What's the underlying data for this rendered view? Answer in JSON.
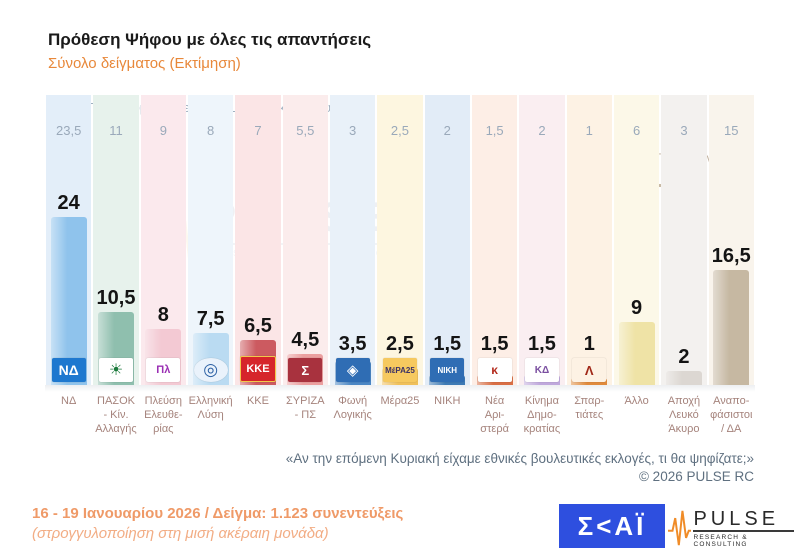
{
  "header": {
    "title": "Πρόθεση Ψήφου με όλες τις απαντήσεις",
    "subtitle": "Σύνολο δείγματος   (Εκτίμηση)"
  },
  "previous_survey_header": "Προηγούμενη έρευνα ( 11 - 14 Δεκεμβρίου 2025 )",
  "grey_zone": {
    "label": "Γκρίζα ζώνη",
    "value": "18,5"
  },
  "watermark": {
    "word": "PULSE",
    "sub": "RESEARCH & CONSULTING"
  },
  "question": "«Αν την επόμενη Κυριακή είχαμε εθνικές βουλευτικές εκλογές, τι θα ψηφίζατε;»",
  "copyright": "©  2026  PULSE RC",
  "footer": {
    "line1": "16 - 19 Ιανουαρίου 2026  /  Δείγμα:  1.123 συνεντεύξεις",
    "line2": "(στρογγυλοποίηση στη μισή ακέραιη μονάδα)"
  },
  "logos": {
    "skai_text": "Σ<ΑΪ",
    "pulse_word": "PULSE",
    "pulse_sub": "RESEARCH & CONSULTING"
  },
  "colors": {
    "accent_orange": "#e8883a",
    "skai_blue": "#2e4fdf",
    "pulse_orange": "#f08c28",
    "grey_zone_tan": "#c3b3a0"
  },
  "chart_data": {
    "type": "bar",
    "title": "Πρόθεση Ψήφου με όλες τις απαντήσεις",
    "subtitle": "Σύνολο δείγματος (Εκτίμηση)",
    "ylim": [
      0,
      26
    ],
    "grid": false,
    "legend": "none",
    "categories": [
      "ΝΔ",
      "ΠΑΣΟΚ - Κίν. Αλλαγής",
      "Πλεύση Ελευθερίας",
      "Ελληνική Λύση",
      "ΚΚΕ",
      "ΣΥΡΙΖΑ - ΠΣ",
      "Φωνή Λογικής",
      "Μέρα25",
      "ΝΙΚΗ",
      "Νέα Αριστερά",
      "Κίνημα Δημοκρατίας",
      "Σπαρτιάτες",
      "Άλλο",
      "Αποχή Λευκό Άκυρο",
      "Αναποφάσιστοι / ΔΑ"
    ],
    "categories_multiline": [
      "ΝΔ",
      "ΠΑΣΟΚ\n- Κίν.\nΑλλαγής",
      "Πλεύση\nΕλευθε-\nρίας",
      "Ελληνική\nΛύση",
      "ΚΚΕ",
      "ΣΥΡΙΖΑ\n- ΠΣ",
      "Φωνή\nΛογικής",
      "Μέρα25",
      "ΝΙΚΗ",
      "Νέα\nΑρι-\nστερά",
      "Κίνημα\nΔημο-\nκρατίας",
      "Σπαρ-\nτιάτες",
      "Άλλο",
      "Αποχή\nΛευκό\nΆκυρο",
      "Αναπο-\nφάσιστοι\n/ ΔΑ"
    ],
    "values": [
      24,
      10.5,
      8,
      7.5,
      6.5,
      4.5,
      3.5,
      2.5,
      1.5,
      1.5,
      1.5,
      1,
      9,
      2,
      16.5
    ],
    "value_labels": [
      "24",
      "10,5",
      "8",
      "7,5",
      "6,5",
      "4,5",
      "3,5",
      "2,5",
      "1,5",
      "1,5",
      "1,5",
      "1",
      "9",
      "2",
      "16,5"
    ],
    "previous_survey_label": "Προηγούμενη έρευνα ( 11 - 14 Δεκεμβρίου 2025 )",
    "previous_values": [
      "23,5",
      "11",
      "9",
      "8",
      "7",
      "5,5",
      "3",
      "2,5",
      "2",
      "1,5",
      "2",
      "1",
      "6",
      "3",
      "15"
    ],
    "grey_zone_value": "18,5",
    "bar_colors": [
      "#8fc3ec",
      "#8fbfae",
      "#f3c9d3",
      "#badbf2",
      "#cc5a60",
      "#eb9f9f",
      "#4a86c4",
      "#f0c05a",
      "#3d7ab5",
      "#d96f45",
      "#bfa8dc",
      "#e08a3c",
      "#efe3a6",
      "#dcd7d2",
      "#c6b8a2"
    ],
    "band_colors": [
      "#e3eef9",
      "#e7f2ec",
      "#fbe9ed",
      "#eef5fb",
      "#fbe5e6",
      "#fbecec",
      "#e9f1f9",
      "#fdf6e0",
      "#e2ecf7",
      "#fdeee6",
      "#faeef1",
      "#fdf2e4",
      "#fcf8e8",
      "#f3f1ef",
      "#f9f4ec"
    ],
    "logos": [
      {
        "name": "nd-logo",
        "text": "ΝΔ",
        "bg": "#1e78cf",
        "fg": "#ffffff",
        "fs": 14
      },
      {
        "name": "pasok-sun-logo",
        "text": "☀",
        "bg": "#ffffff",
        "fg": "#1b7a3c",
        "fs": 16
      },
      {
        "name": "plefsi-eleftherias-ship-logo",
        "text": "Πλ",
        "bg": "#ffffff",
        "fg": "#9b30b4",
        "fs": 11
      },
      {
        "name": "elliniki-lysi-compass-logo",
        "text": "◎",
        "bg": "#eaf2fb",
        "fg": "#2b5fa3",
        "fs": 17,
        "round": true
      },
      {
        "name": "kke-logo",
        "text": "ΚΚΕ",
        "bg": "#d6252b",
        "fg": "#ffffff",
        "fs": 11,
        "border": "#f2c84b"
      },
      {
        "name": "syriza-star-logo",
        "text": "Σ",
        "bg": "#a8323e",
        "fg": "#ffffff",
        "fs": 13
      },
      {
        "name": "foni-logikis-diamond-logo",
        "text": "◈",
        "bg": "#2f6db4",
        "fg": "#ffffff",
        "fs": 15
      },
      {
        "name": "mera25-logo",
        "text": "ΜέΡΑ25",
        "bg": "#f6c95f",
        "fg": "#3c3266",
        "fs": 8
      },
      {
        "name": "niki-logo",
        "text": "ΝΙΚΗ",
        "bg": "#2f6db4",
        "fg": "#ffffff",
        "fs": 8
      },
      {
        "name": "nea-aristera-logo",
        "text": "κ",
        "bg": "#ffffff",
        "fg": "#b42c1e",
        "fs": 12
      },
      {
        "name": "kinima-dimokratias-logo",
        "text": "ΚΔ",
        "bg": "#ffffff",
        "fg": "#7a4fa0",
        "fs": 10
      },
      {
        "name": "spartiates-helmet-logo",
        "text": "Λ",
        "bg": "#fdf2e4",
        "fg": "#a02818",
        "fs": 13
      },
      null,
      null,
      null
    ]
  }
}
